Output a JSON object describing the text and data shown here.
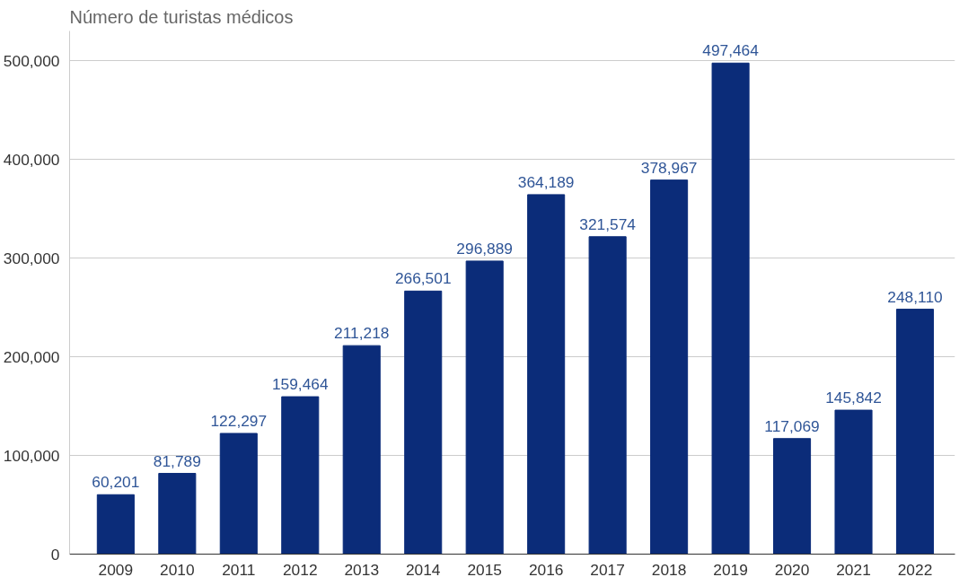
{
  "chart_data": {
    "type": "bar",
    "title": "Número de turistas médicos",
    "categories": [
      "2009",
      "2010",
      "2011",
      "2012",
      "2013",
      "2014",
      "2015",
      "2016",
      "2017",
      "2018",
      "2019",
      "2020",
      "2021",
      "2022"
    ],
    "values": [
      60201,
      81789,
      122297,
      159464,
      211218,
      266501,
      296889,
      364189,
      321574,
      378967,
      497464,
      117069,
      145842,
      248110
    ],
    "color": "#0b2c79",
    "value_labels": [
      "60,201",
      "81,789",
      "122,297",
      "159,464",
      "211,218",
      "266,501",
      "296,889",
      "364,189",
      "321,574",
      "378,967",
      "497,464",
      "117,069",
      "145,842",
      "248,110"
    ],
    "ylim": [
      0,
      530000
    ],
    "yticks": [
      {
        "value": 0,
        "label": "0"
      },
      {
        "value": 100000,
        "label": "100,000"
      },
      {
        "value": 200000,
        "label": "200,000"
      },
      {
        "value": 300000,
        "label": "300,000"
      },
      {
        "value": 400000,
        "label": "400,000"
      },
      {
        "value": 500000,
        "label": "500,000"
      }
    ],
    "grid": "y"
  }
}
